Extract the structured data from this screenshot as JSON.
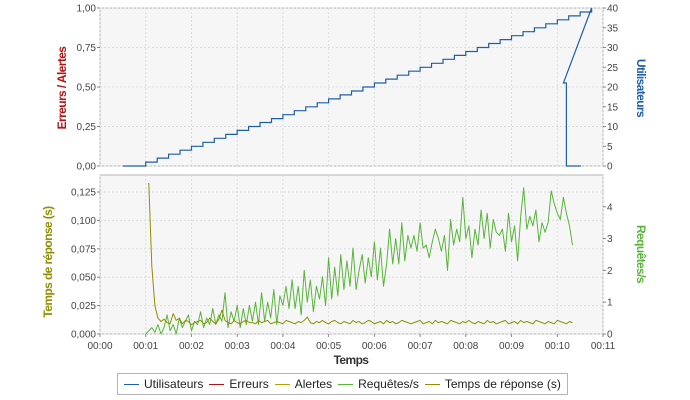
{
  "chart_data": {
    "type": "line",
    "xlabel": "Temps",
    "x_ticks": [
      "00:00",
      "00:01",
      "00:02",
      "00:03",
      "00:04",
      "00:05",
      "00:06",
      "00:07",
      "00:08",
      "00:09",
      "00:10",
      "00:11"
    ],
    "xlim_seconds": [
      0,
      660
    ],
    "top_panel": {
      "y_left_label": "Erreurs / Alertes",
      "y_left_ticks": [
        "0,00",
        "0,25",
        "0,50",
        "0,75",
        "1,00"
      ],
      "y_left_range": [
        0,
        1
      ],
      "y_right_label": "Utilisateurs",
      "y_right_ticks": [
        "0",
        "5",
        "10",
        "15",
        "20",
        "25",
        "30",
        "35",
        "40"
      ],
      "y_right_range": [
        0,
        40
      ],
      "grid": true,
      "series": [
        {
          "name": "Utilisateurs",
          "color": "#1f5fa6",
          "axis": "right",
          "ramp": {
            "start": [
              30,
              0
            ],
            "rise_start": 60,
            "steps": 40,
            "step_seconds": 15,
            "peak_end": 608,
            "drop_to": 21,
            "drop_end": 612,
            "end": 631
          }
        },
        {
          "name": "Erreurs",
          "color": "#b01515",
          "axis": "left",
          "values": []
        },
        {
          "name": "Alertes",
          "color": "#b8a000",
          "axis": "left",
          "values": []
        }
      ]
    },
    "bottom_panel": {
      "y_left_label": "Temps de réponse (s)",
      "y_left_ticks": [
        "0,000",
        "0,025",
        "0,050",
        "0,075",
        "0,100",
        "0,125"
      ],
      "y_left_range": [
        0,
        0.14
      ],
      "y_right_label": "Requêtes/s",
      "y_right_ticks": [
        "0",
        "1",
        "2",
        "3",
        "4"
      ],
      "y_right_range": [
        0,
        5
      ],
      "grid": true,
      "series": [
        {
          "name": "Requêtes/s",
          "color": "#5ab43c",
          "axis": "right",
          "x_start": 60,
          "x_step": 4,
          "values": [
            0,
            0.1,
            0.2,
            0.05,
            0.3,
            0,
            0.2,
            0.6,
            0.1,
            0.3,
            0,
            0.5,
            0.2,
            0.4,
            0.6,
            0.1,
            0.4,
            0.3,
            0.7,
            0.2,
            0.5,
            0.3,
            0.8,
            0.3,
            0.6,
            0.4,
            1.3,
            0.2,
            0.7,
            0.4,
            0.9,
            0.2,
            0.8,
            0.3,
            0.9,
            0.4,
            1.0,
            0.3,
            1.3,
            0.4,
            1.0,
            0.5,
            1.4,
            0.3,
            1.2,
            0.9,
            1.5,
            0.8,
            1.7,
            0.8,
            1.5,
            0.6,
            2.0,
            1.0,
            1.7,
            0.7,
            1.5,
            1.1,
            1.8,
            0.9,
            2.4,
            1.1,
            2.1,
            1.2,
            2.5,
            1.4,
            2.3,
            1.5,
            2.7,
            1.4,
            2.0,
            2.5,
            1.6,
            2.4,
            1.8,
            2.9,
            1.7,
            2.7,
            1.5,
            2.2,
            3.3,
            2.2,
            3.0,
            2.2,
            3.5,
            2.3,
            3.1,
            2.7,
            3.1,
            2.6,
            3.5,
            2.7,
            2.8,
            2.4,
            2.9,
            3.3,
            3.0,
            2.6,
            3.1,
            2.0,
            3.6,
            2.8,
            3.3,
            2.9,
            4.3,
            3.0,
            3.4,
            2.4,
            3.3,
            2.8,
            3.9,
            3.0,
            3.8,
            2.7,
            3.6,
            3.2,
            3.1,
            3.3,
            2.6,
            3.8,
            2.9,
            3.4,
            2.3,
            3.7,
            4.6,
            3.3,
            3.7,
            3.4,
            3.9,
            2.9,
            3.5,
            3.2,
            3.5,
            4.5,
            4.1,
            3.8,
            3.6,
            4.3,
            3.8,
            3.4,
            2.8
          ]
        },
        {
          "name": "Temps de réponse (s)",
          "color": "#8f8f00",
          "axis": "left",
          "x_start": 64,
          "x_step": 4,
          "values": [
            0.133,
            0.06,
            0.025,
            0.014,
            0.011,
            0.013,
            0.01,
            0.009,
            0.018,
            0.012,
            0.014,
            0.009,
            0.012,
            0.011,
            0.008,
            0.01,
            0.011,
            0.012,
            0.009,
            0.01,
            0.014,
            0.011,
            0.009,
            0.013,
            0.021,
            0.012,
            0.01,
            0.009,
            0.012,
            0.01,
            0.009,
            0.011,
            0.012,
            0.01,
            0.01,
            0.009,
            0.012,
            0.01,
            0.011,
            0.012,
            0.009,
            0.01,
            0.011,
            0.01,
            0.009,
            0.012,
            0.011,
            0.01,
            0.009,
            0.011,
            0.01,
            0.012,
            0.015,
            0.01,
            0.009,
            0.011,
            0.01,
            0.012,
            0.01,
            0.009,
            0.011,
            0.012,
            0.01,
            0.009,
            0.011,
            0.01,
            0.009,
            0.012,
            0.01,
            0.011,
            0.009,
            0.01,
            0.012,
            0.011,
            0.009,
            0.01,
            0.011,
            0.009,
            0.012,
            0.01,
            0.011,
            0.009,
            0.01,
            0.012,
            0.011,
            0.01,
            0.009,
            0.01,
            0.011,
            0.012,
            0.009,
            0.01,
            0.011,
            0.009,
            0.012,
            0.01,
            0.011,
            0.01,
            0.009,
            0.012,
            0.011,
            0.01,
            0.009,
            0.011,
            0.01,
            0.012,
            0.01,
            0.009,
            0.011,
            0.01,
            0.009,
            0.012,
            0.01,
            0.011,
            0.009,
            0.01,
            0.011,
            0.012,
            0.009,
            0.01,
            0.011,
            0.009,
            0.012,
            0.01,
            0.011,
            0.01,
            0.009,
            0.012,
            0.011,
            0.01,
            0.009,
            0.011,
            0.01,
            0.009,
            0.012,
            0.011,
            0.01,
            0.009,
            0.011,
            0.01
          ]
        }
      ]
    },
    "legend": {
      "placement": "bottom",
      "items": [
        {
          "label": "Utilisateurs",
          "color": "#1f5fa6"
        },
        {
          "label": "Erreurs",
          "color": "#b01515"
        },
        {
          "label": "Alertes",
          "color": "#b8a000"
        },
        {
          "label": "Requêtes/s",
          "color": "#5ab43c"
        },
        {
          "label": "Temps de réponse (s)",
          "color": "#8f8f00"
        }
      ]
    }
  }
}
